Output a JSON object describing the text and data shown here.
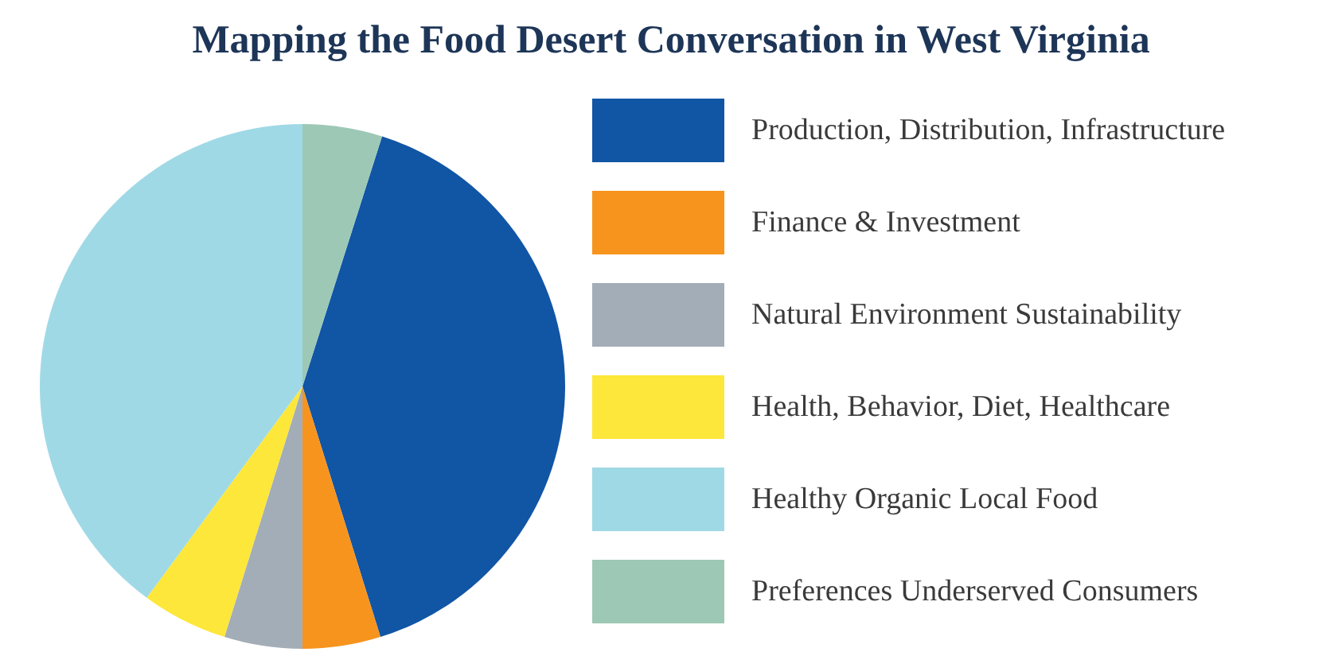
{
  "chart_data": {
    "type": "pie",
    "title": "Mapping the Food Desert Conversation in West Virginia",
    "categories": [
      "Production, Distribution, Infrastructure",
      "Finance & Investment",
      "Natural Environment Sustainability",
      "Health, Behavior, Diet, Healthcare",
      "Healthy Organic Local Food",
      "Preferences Underserved Consumers"
    ],
    "values": [
      40.3,
      4.8,
      4.8,
      5.3,
      39.9,
      4.9
    ],
    "colors": [
      "#1155a5",
      "#f7941d",
      "#a3adb8",
      "#fde73a",
      "#a0d9e6",
      "#9dc8b5"
    ],
    "legend": "right"
  }
}
